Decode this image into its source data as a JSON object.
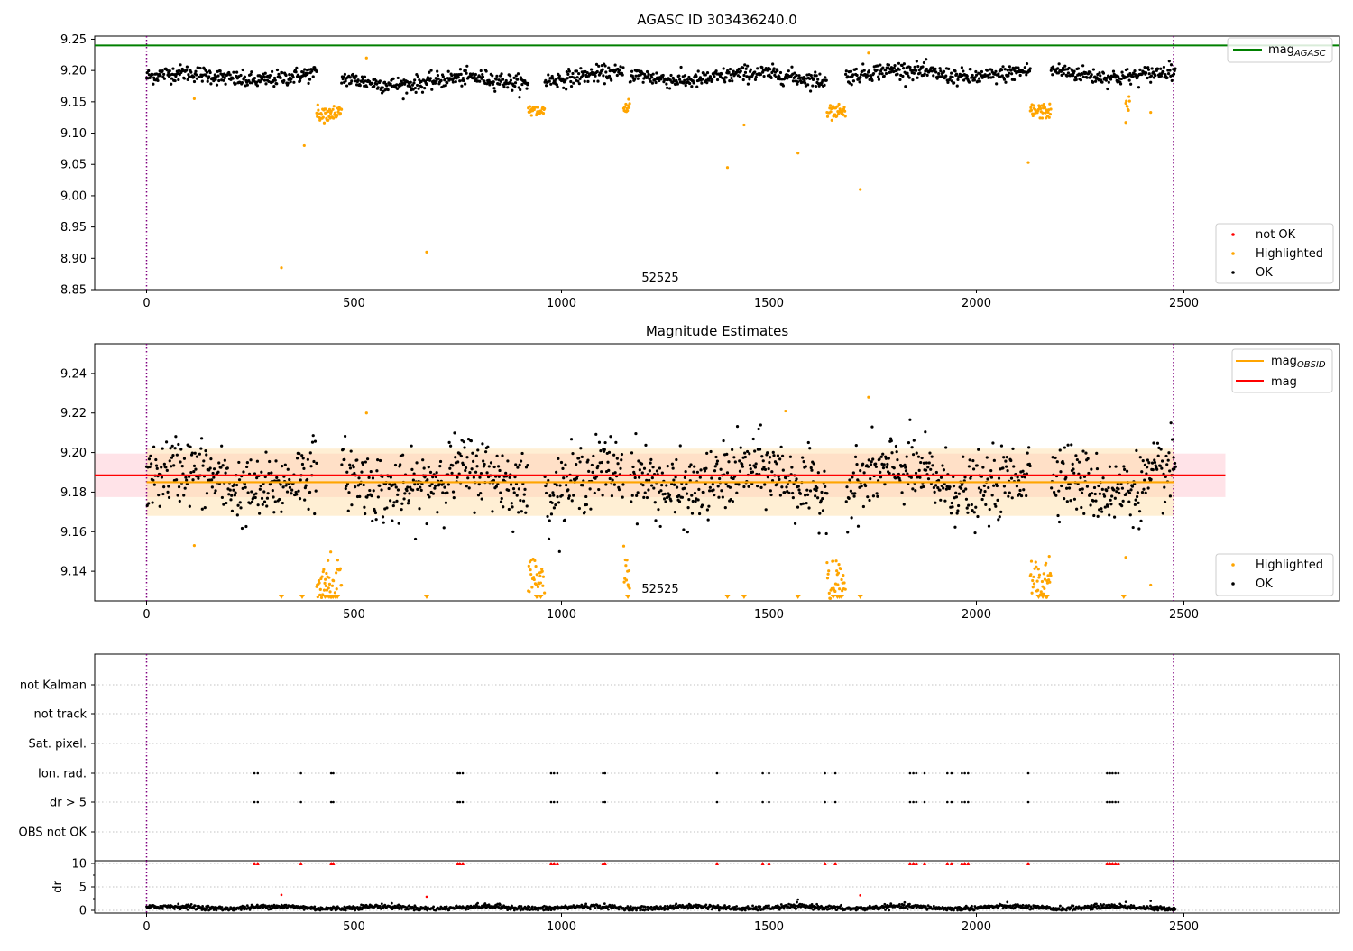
{
  "chart_data": [
    {
      "type": "scatter",
      "title": "AGASC ID 303436240.0",
      "xlabel": "",
      "ylabel": "",
      "xlim": [
        -125,
        2875
      ],
      "ylim": [
        8.85,
        9.255
      ],
      "xticks": [
        "0",
        "500",
        "1000",
        "1500",
        "2000",
        "2500"
      ],
      "yticks": [
        "8.85",
        "8.90",
        "8.95",
        "9.00",
        "9.05",
        "9.10",
        "9.15",
        "9.20",
        "9.25"
      ],
      "obsid_label": "52525",
      "obs_boundaries": [
        0,
        2475
      ],
      "reference_line": {
        "name": "mag_AGASC",
        "value": 9.24,
        "color": "#008000"
      },
      "legend_main": [
        "mag",
        "AGASC"
      ],
      "series": [
        {
          "name": "not OK",
          "color": "#ff0000",
          "points": []
        },
        {
          "name": "Highlighted",
          "color": "#ffa500",
          "dip_clusters": [
            [
              410,
              470,
              9.132
            ],
            [
              920,
              960,
              9.135
            ],
            [
              1150,
              1165,
              9.14
            ],
            [
              1640,
              1685,
              9.132
            ],
            [
              2130,
              2180,
              9.135
            ],
            [
              2360,
              2370,
              9.145
            ]
          ],
          "points": [
            [
              115,
              9.155
            ],
            [
              325,
              8.885
            ],
            [
              380,
              9.08
            ],
            [
              530,
              9.22
            ],
            [
              675,
              8.91
            ],
            [
              1400,
              9.045
            ],
            [
              1440,
              9.113
            ],
            [
              1570,
              9.068
            ],
            [
              1720,
              9.01
            ],
            [
              1740,
              9.228
            ],
            [
              2125,
              9.053
            ],
            [
              2360,
              9.117
            ],
            [
              2420,
              9.133
            ]
          ]
        },
        {
          "name": "OK",
          "color": "#000000",
          "segments": [
            [
              0,
              410,
              9.19
            ],
            [
              470,
              920,
              9.183
            ],
            [
              960,
              1150,
              9.19
            ],
            [
              1165,
              1640,
              9.19
            ],
            [
              1685,
              2130,
              9.195
            ],
            [
              2180,
              2480,
              9.195
            ]
          ]
        }
      ],
      "legend": [
        "not OK",
        "Highlighted",
        "OK"
      ]
    },
    {
      "type": "scatter",
      "title": "Magnitude Estimates",
      "xlabel": "",
      "ylabel": "",
      "xlim": [
        -125,
        2875
      ],
      "ylim": [
        9.125,
        9.255
      ],
      "xticks": [
        "0",
        "500",
        "1000",
        "1500",
        "2000",
        "2500"
      ],
      "yticks": [
        "9.14",
        "9.16",
        "9.18",
        "9.20",
        "9.22",
        "9.24"
      ],
      "obsid_label": "52525",
      "obs_boundaries": [
        0,
        2475
      ],
      "mag_line": {
        "name": "mag",
        "value": 9.1885,
        "band": [
          9.1775,
          9.1995
        ],
        "x": [
          -125,
          2600
        ],
        "color": "#ff0000"
      },
      "mag_obsid_line": {
        "name": "mag_OBSID",
        "value": 9.185,
        "band": [
          9.168,
          9.202
        ],
        "x": [
          0,
          2475
        ],
        "color": "#ffa500"
      },
      "legend_main": [
        "mag",
        "OBSID"
      ],
      "legend_second": "mag",
      "series": [
        {
          "name": "Highlighted",
          "color": "#ffa500",
          "points": [
            [
              115,
              9.153
            ],
            [
              530,
              9.22
            ],
            [
              1540,
              9.221
            ],
            [
              1740,
              9.228
            ],
            [
              2360,
              9.147
            ],
            [
              2420,
              9.133
            ]
          ],
          "off_scale_x": [
            325,
            375,
            675,
            1400,
            1440,
            1570,
            1720,
            2355
          ]
        },
        {
          "name": "OK",
          "color": "#000000",
          "mean": 9.186,
          "spread": 0.012
        }
      ],
      "legend": [
        "Highlighted",
        "OK"
      ]
    },
    {
      "type": "scatter",
      "title": "",
      "xlabel": "",
      "ylabel": "",
      "xlim": [
        -125,
        2875
      ],
      "xticks": [
        "0",
        "500",
        "1000",
        "1500",
        "2000",
        "2500"
      ],
      "obs_boundaries": [
        0,
        2475
      ],
      "categories": [
        "not Kalman",
        "not track",
        "Sat. pixel.",
        "Ion. rad.",
        "dr > 5",
        "OBS not OK"
      ],
      "flag_x": [
        260,
        268,
        372,
        445,
        450,
        750,
        755,
        762,
        975,
        982,
        990,
        1100,
        1105,
        1375,
        1485,
        1500,
        1635,
        1660,
        1840,
        1848,
        1855,
        1875,
        1930,
        1940,
        1965,
        1972,
        1980,
        2125,
        2315,
        2322,
        2328,
        2335,
        2342
      ]
    },
    {
      "type": "scatter",
      "title": "",
      "xlabel": "",
      "ylabel": "dr",
      "xlim": [
        -125,
        2875
      ],
      "ylim": [
        -0.3,
        10
      ],
      "xticks": [
        "0",
        "500",
        "1000",
        "1500",
        "2000",
        "2500"
      ],
      "yticks": [
        "0",
        "5",
        "10"
      ],
      "obs_boundaries": [
        0,
        2475
      ],
      "clipped_value": 10,
      "baseline": 0.6,
      "outliers": [
        [
          325,
          3.3
        ],
        [
          675,
          2.9
        ],
        [
          1720,
          3.2
        ],
        [
          1570,
          2.3
        ],
        [
          2420,
          2.0
        ],
        [
          2360,
          1.8
        ]
      ]
    }
  ]
}
